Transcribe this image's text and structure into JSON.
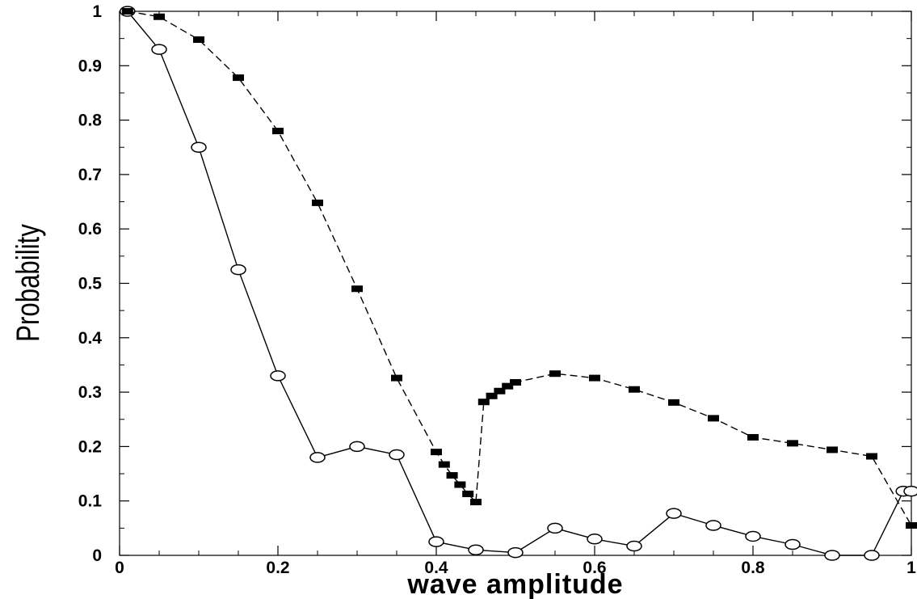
{
  "chart_data": {
    "type": "line",
    "xlabel": "wave amplitude",
    "ylabel": "Probability",
    "xlim": [
      0,
      1
    ],
    "ylim": [
      0,
      1
    ],
    "xticks": [
      "0",
      "0.2",
      "0.4",
      "0.6",
      "0.8",
      "1"
    ],
    "yticks": [
      "0",
      "0.1",
      "0.2",
      "0.3",
      "0.4",
      "0.5",
      "0.6",
      "0.7",
      "0.8",
      "0.9",
      "1"
    ],
    "grid": false,
    "series": [
      {
        "line_style": "solid",
        "marker": "open-circle",
        "color": "#000000",
        "x": [
          0.01,
          0.05,
          0.1,
          0.15,
          0.2,
          0.25,
          0.3,
          0.35,
          0.4,
          0.45,
          0.5,
          0.55,
          0.6,
          0.65,
          0.7,
          0.75,
          0.8,
          0.85,
          0.9,
          0.95,
          0.99,
          1.0
        ],
        "y": [
          1.0,
          0.93,
          0.75,
          0.525,
          0.33,
          0.18,
          0.2,
          0.185,
          0.025,
          0.01,
          0.005,
          0.05,
          0.03,
          0.017,
          0.077,
          0.055,
          0.035,
          0.02,
          0.0,
          0.0,
          0.118,
          0.118
        ]
      },
      {
        "line_style": "dashed",
        "marker": "filled-square",
        "color": "#000000",
        "x": [
          0.01,
          0.05,
          0.1,
          0.15,
          0.2,
          0.25,
          0.3,
          0.35,
          0.4,
          0.41,
          0.42,
          0.43,
          0.44,
          0.45,
          0.46,
          0.47,
          0.48,
          0.49,
          0.5,
          0.55,
          0.6,
          0.65,
          0.7,
          0.75,
          0.8,
          0.85,
          0.9,
          0.95,
          1.0
        ],
        "y": [
          1.0,
          0.99,
          0.948,
          0.878,
          0.78,
          0.648,
          0.49,
          0.326,
          0.19,
          0.167,
          0.147,
          0.13,
          0.113,
          0.098,
          0.282,
          0.293,
          0.302,
          0.311,
          0.318,
          0.334,
          0.326,
          0.305,
          0.281,
          0.252,
          0.217,
          0.206,
          0.194,
          0.182,
          0.055
        ]
      }
    ]
  }
}
